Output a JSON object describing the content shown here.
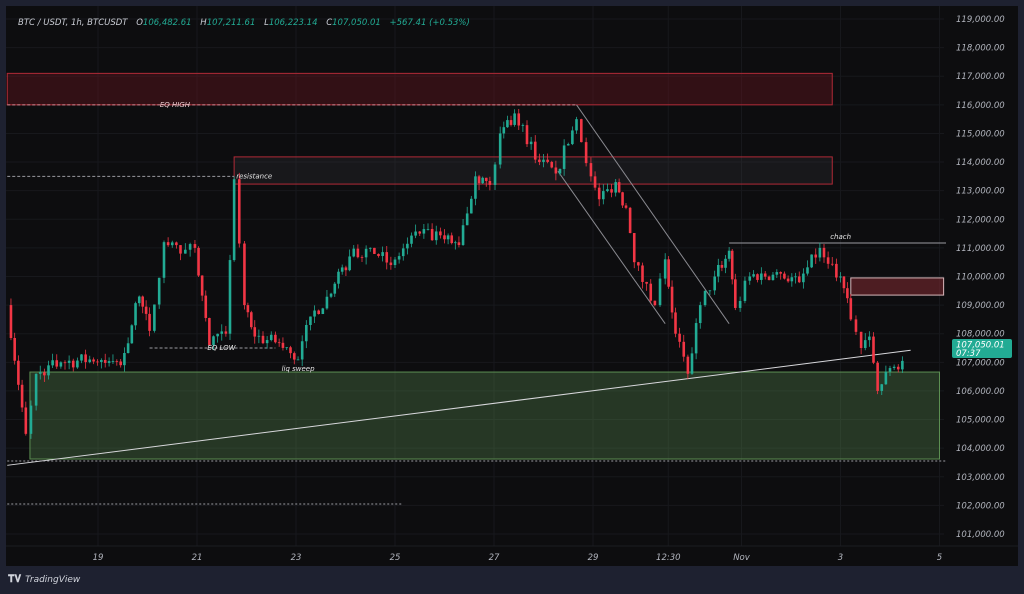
{
  "header": {
    "symbol": "BTC / USDT, 1h, BTCUSDT",
    "open_label": "O",
    "open": "106,482.61",
    "high_label": "H",
    "high": "107,211.61",
    "low_label": "L",
    "low": "106,223.14",
    "close_label": "C",
    "close": "107,050.01",
    "change": "+567.41 (+0.53%)"
  },
  "price_tag": {
    "price": "107,050.01",
    "countdown": "07:37"
  },
  "brand": {
    "logo_text": "TV",
    "name": "TradingView"
  },
  "colors": {
    "up": "#22ab94",
    "down": "#f23645",
    "background": "#0d0d0f",
    "supply_zone": "#8e1f2c",
    "demand_zone": "#5c8f52"
  },
  "chart_data": {
    "type": "candlestick",
    "symbol": "BTCUSDT",
    "interval": "1h",
    "ylim": [
      100500,
      119500
    ],
    "y_ticks": [
      "119,000.00",
      "118,000.00",
      "117,000.00",
      "116,000.00",
      "115,000.00",
      "114,000.00",
      "113,000.00",
      "112,000.00",
      "111,000.00",
      "110,000.00",
      "109,000.00",
      "108,000.00",
      "107,000.00",
      "106,000.00",
      "105,000.00",
      "104,000.00",
      "103,000.00",
      "102,000.00",
      "101,000.00"
    ],
    "x_ticks": [
      {
        "label": "19",
        "t": "10-19 00:00"
      },
      {
        "label": "21",
        "t": "10-21 00:00"
      },
      {
        "label": "23",
        "t": "10-23 00:00"
      },
      {
        "label": "25",
        "t": "10-25 00:00"
      },
      {
        "label": "27",
        "t": "10-27 00:00"
      },
      {
        "label": "29",
        "t": "10-29 00:00"
      },
      {
        "label": "12:30",
        "t": "10-30 12:30"
      },
      {
        "label": "Nov",
        "t": "11-01 00:00"
      },
      {
        "label": "3",
        "t": "11-03 00:00"
      },
      {
        "label": "5",
        "t": "11-05 00:00"
      }
    ],
    "price_path": [
      [
        "10-17 04:00",
        109000
      ],
      [
        "10-17 13:00",
        104500
      ],
      [
        "10-17 18:00",
        106600
      ],
      [
        "10-18 06:00",
        107000
      ],
      [
        "10-18 20:00",
        107100
      ],
      [
        "10-19 11:00",
        106900
      ],
      [
        "10-19 20:00",
        109300
      ],
      [
        "10-20 01:00",
        108100
      ],
      [
        "10-20 08:00",
        111200
      ],
      [
        "10-20 16:00",
        110800
      ],
      [
        "10-20 23:00",
        111000
      ],
      [
        "10-21 06:00",
        107600
      ],
      [
        "10-21 14:00",
        108000
      ],
      [
        "10-21 18:00",
        113400
      ],
      [
        "10-21 23:00",
        109000
      ],
      [
        "10-22 04:00",
        107900
      ],
      [
        "10-22 14:00",
        107700
      ],
      [
        "10-23 01:00",
        107100
      ],
      [
        "10-23 07:00",
        108600
      ],
      [
        "10-23 17:00",
        109400
      ],
      [
        "10-24 02:00",
        110700
      ],
      [
        "10-24 12:00",
        111000
      ],
      [
        "10-24 22:00",
        110400
      ],
      [
        "10-25 12:00",
        111500
      ],
      [
        "10-26 00:00",
        111300
      ],
      [
        "10-26 07:00",
        111100
      ],
      [
        "10-26 15:00",
        113500
      ],
      [
        "10-26 22:00",
        113200
      ],
      [
        "10-27 03:00",
        115000
      ],
      [
        "10-27 10:00",
        115700
      ],
      [
        "10-27 22:00",
        114000
      ],
      [
        "10-28 06:00",
        113600
      ],
      [
        "10-28 16:00",
        115500
      ],
      [
        "10-28 23:00",
        113500
      ],
      [
        "10-29 03:00",
        112700
      ],
      [
        "10-29 11:00",
        113300
      ],
      [
        "10-29 16:00",
        112400
      ],
      [
        "10-29 20:00",
        110500
      ],
      [
        "10-30 06:00",
        109000
      ],
      [
        "10-30 11:00",
        110600
      ],
      [
        "10-30 16:00",
        108000
      ],
      [
        "10-30 22:00",
        106600
      ],
      [
        "10-31 04:00",
        109000
      ],
      [
        "10-31 11:00",
        110000
      ],
      [
        "10-31 18:00",
        110900
      ],
      [
        "10-31 21:00",
        108900
      ],
      [
        "11-01 04:00",
        110000
      ],
      [
        "11-01 19:00",
        110100
      ],
      [
        "11-02 04:00",
        109800
      ],
      [
        "11-02 14:00",
        111000
      ],
      [
        "11-03 00:00",
        110000
      ],
      [
        "11-03 05:00",
        108500
      ],
      [
        "11-03 10:00",
        107500
      ],
      [
        "11-03 14:00",
        107900
      ],
      [
        "11-03 18:00",
        106000
      ],
      [
        "11-04 00:00",
        106800
      ],
      [
        "11-04 06:00",
        107050
      ]
    ],
    "zones": [
      {
        "name": "supply-zone-top",
        "from": "10-17 04:00",
        "to": "11-02 20:00",
        "low": 116000,
        "high": 117100,
        "kind": "supply"
      },
      {
        "name": "resistance-zone",
        "from": "10-21 18:00",
        "to": "11-02 20:00",
        "low": 113230,
        "high": 114180,
        "kind": "resistance"
      },
      {
        "name": "demand-zone",
        "from": "10-17 15:00",
        "to": "11-05 00:00",
        "low": 103620,
        "high": 106660,
        "kind": "demand"
      },
      {
        "name": "small-supply-zone",
        "from": "11-03 05:00",
        "to": "11-05 02:00",
        "low": 109350,
        "high": 109950,
        "kind": "supply"
      }
    ],
    "lines": [
      {
        "name": "eq-high-line",
        "from": "10-17 04:00",
        "to": "10-28 16:00",
        "price": 116000,
        "style": "dashed",
        "label": "EQ HIGH",
        "label_t": "10-20 06:00"
      },
      {
        "name": "resistance-line",
        "from": "10-17 04:00",
        "to": "10-21 18:00",
        "price": 113500,
        "style": "dashed",
        "label": "resistance",
        "label_t": "10-21 19:00"
      },
      {
        "name": "eq-low-line",
        "from": "10-20 01:00",
        "to": "10-22 14:00",
        "price": 107500,
        "style": "dashed",
        "label": "EQ LOW",
        "label_t": "10-21 05:00"
      },
      {
        "name": "chach-line",
        "from": "10-31 18:00",
        "to": "11-05 06:00",
        "price": 111170,
        "style": "solid",
        "label": "chach",
        "label_t": "11-02 19:00"
      },
      {
        "name": "low-dotted-line",
        "from": "10-17 04:00",
        "to": "11-05 20:00",
        "price": 103550,
        "style": "dotted"
      },
      {
        "name": "lower-dotted-line",
        "from": "10-17 04:00",
        "to": "10-25 04:00",
        "price": 102050,
        "style": "dotted"
      }
    ],
    "annotations": [
      {
        "label": "liq sweep",
        "t": "10-22 17:00",
        "price": 106700
      }
    ],
    "trendlines": [
      {
        "name": "rising-trendline",
        "p1": [
          "10-17 04:00",
          103400
        ],
        "p2": [
          "11-04 10:00",
          107420
        ]
      },
      {
        "name": "channel-upper",
        "p1": [
          "10-28 16:00",
          116000
        ],
        "p2": [
          "10-31 18:00",
          108350
        ]
      },
      {
        "name": "channel-lower",
        "p1": [
          "10-28 07:00",
          113680
        ],
        "p2": [
          "10-30 11:00",
          108350
        ]
      }
    ]
  }
}
